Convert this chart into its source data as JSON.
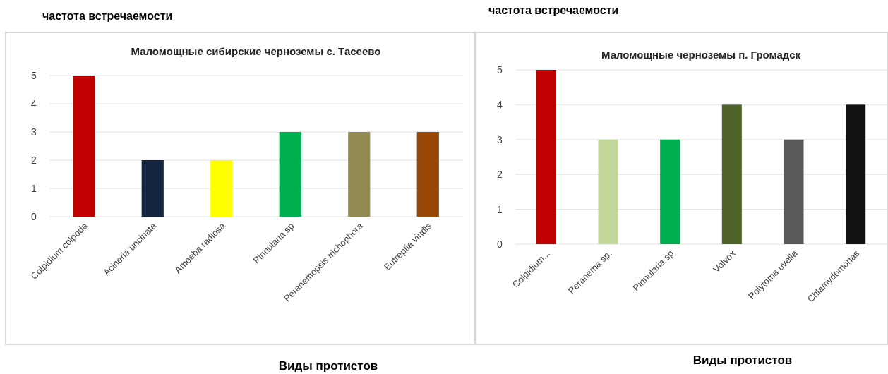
{
  "chart_data": [
    {
      "type": "bar",
      "title": "Маломощные сибирские черноземы с. Тасеево",
      "ylabel": "частота встречаемости",
      "xlabel": "Виды протистов",
      "categories": [
        "Colpidium colpoda",
        "Acineria uncinata",
        "Amoeba radiosa",
        "Pinnularia sp",
        "Peranemopsis trichophora",
        "Eutreptia viridis"
      ],
      "values": [
        5,
        2,
        2,
        3,
        3,
        3
      ],
      "colors": [
        "#c00000",
        "#14263f",
        "#ffff00",
        "#00b050",
        "#948a54",
        "#974706"
      ],
      "ylim": [
        0,
        5
      ],
      "yticks": [
        0,
        1,
        2,
        3,
        4,
        5
      ],
      "grid": "y"
    },
    {
      "type": "bar",
      "title": "Маломощные черноземы п. Громадск",
      "ylabel": "частота встречаемости",
      "xlabel": "Виды протистов",
      "categories": [
        "Colpidium...",
        "Peranema sp.",
        "Pinnularia sp",
        "Volvox",
        "Polytoma uvella",
        "Chlamydomonas"
      ],
      "values": [
        5,
        3,
        3,
        4,
        3,
        4
      ],
      "colors": [
        "#c00000",
        "#c4d79b",
        "#00b050",
        "#4f6228",
        "#595959",
        "#111111"
      ],
      "ylim": [
        0,
        5
      ],
      "yticks": [
        0,
        1,
        2,
        3,
        4,
        5
      ],
      "grid": "y"
    }
  ]
}
